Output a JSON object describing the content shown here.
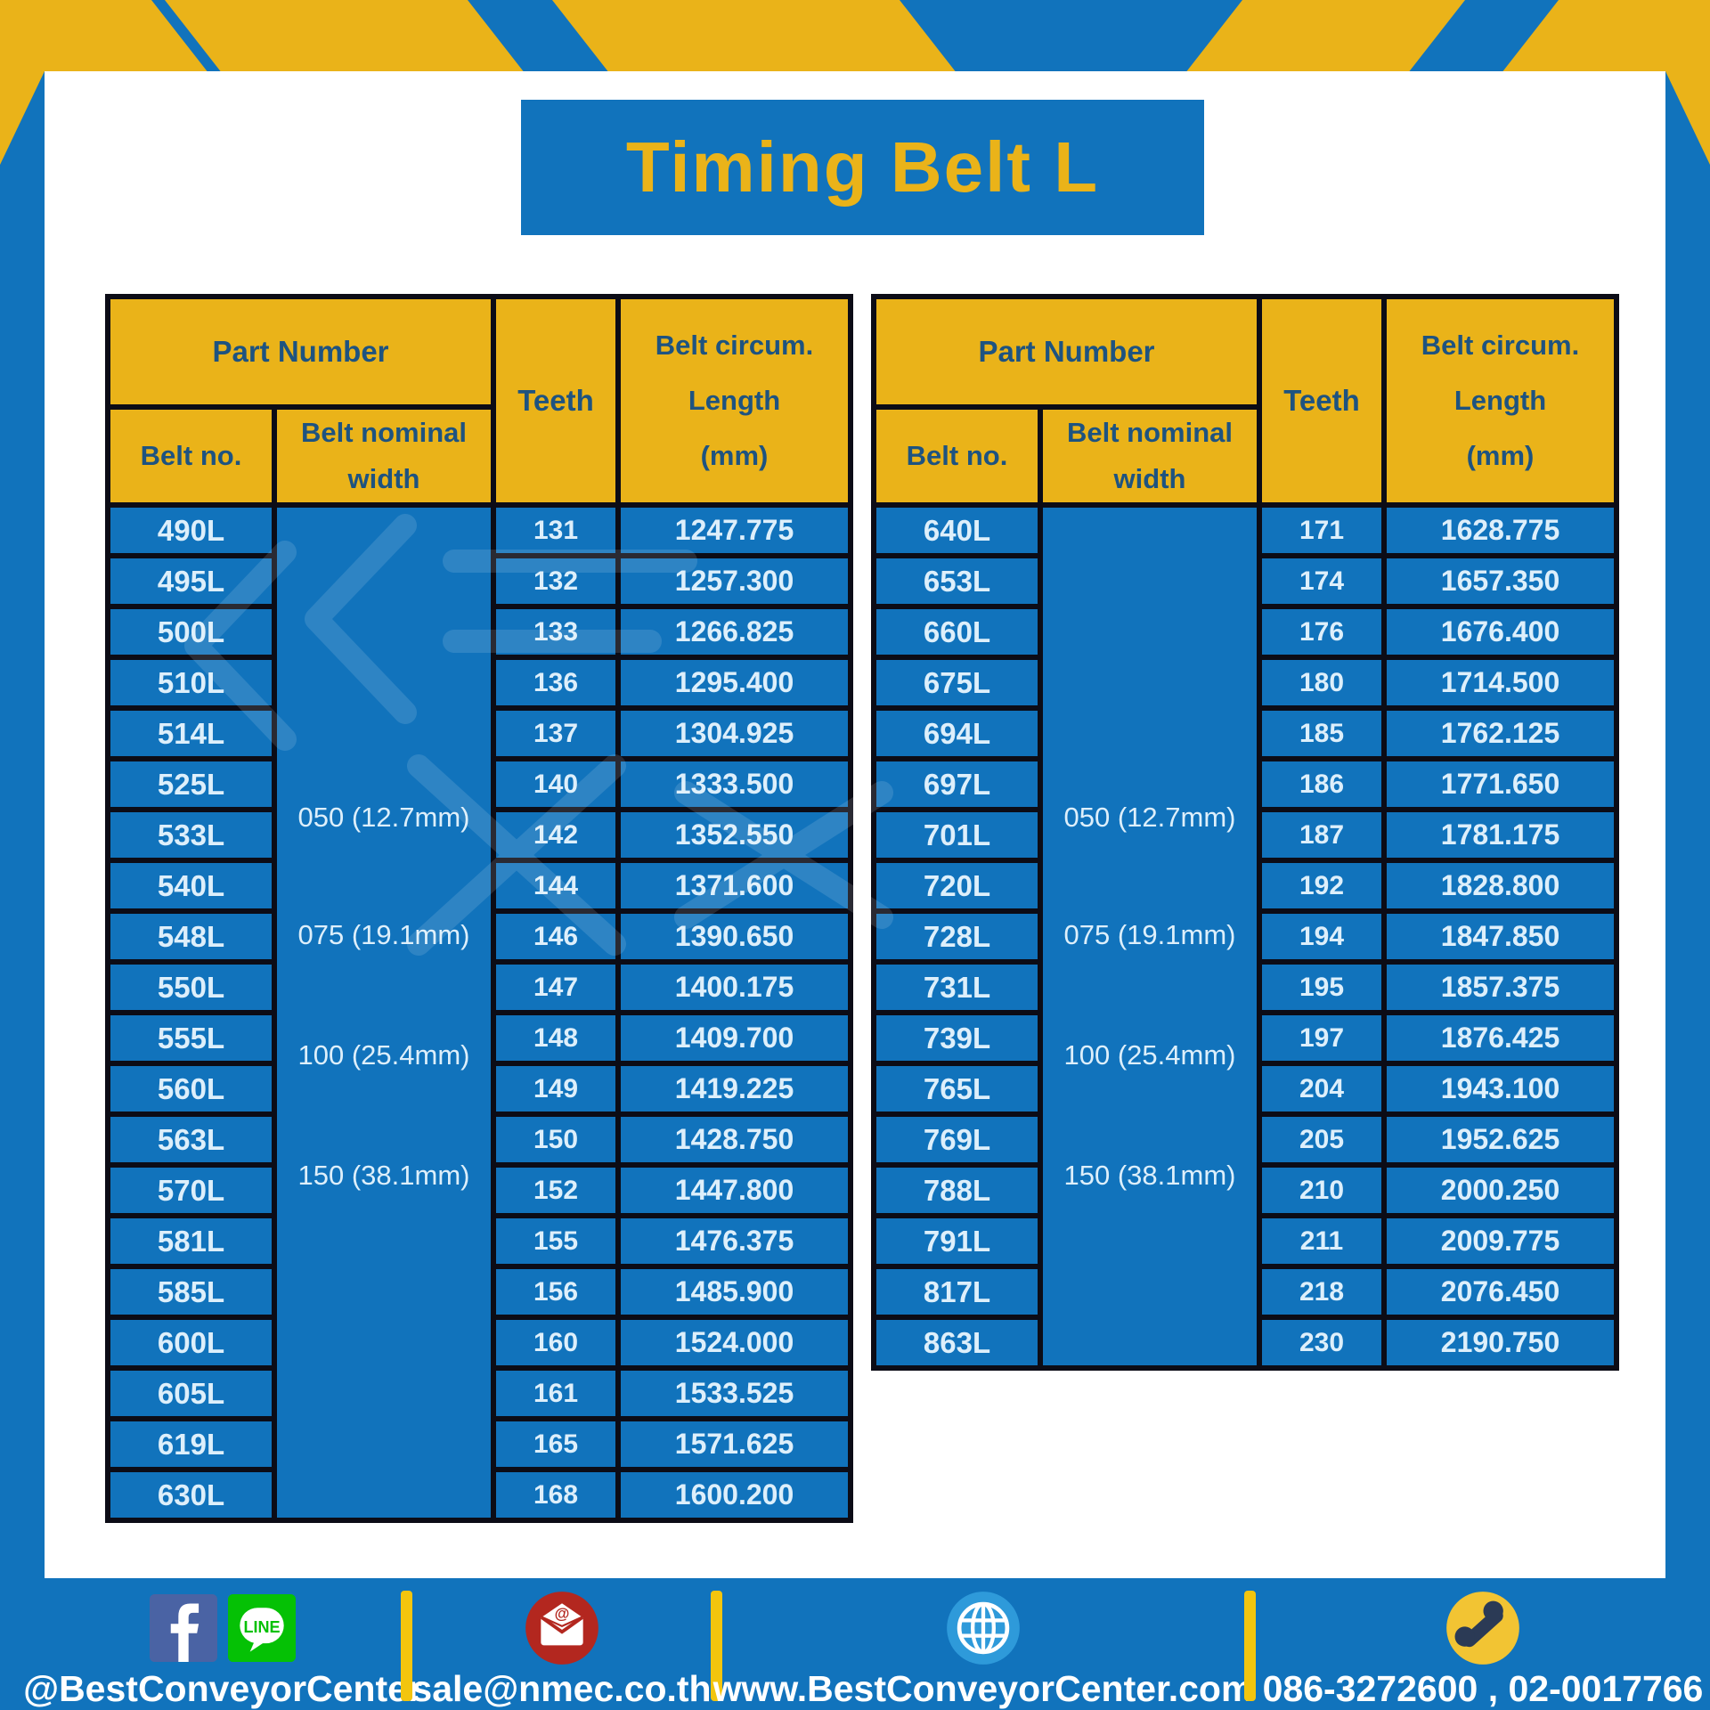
{
  "title": "Timing Belt L",
  "colors": {
    "blue": "#1173bc",
    "gold": "#eab319",
    "navy": "#1e5380",
    "cell-text": "#ddeffb",
    "border-black": "#0c0c16",
    "facebook-blue": "#4a63a4",
    "line-green": "#05c105",
    "email-red": "#b3271f",
    "globe-blue": "#2e9ada",
    "phone-yellow": "#f2c433",
    "white": "#ffffff"
  },
  "tables": [
    {
      "headers": {
        "part_number": "Part Number",
        "belt_no": "Belt no.",
        "belt_width_line1": "Belt nominal",
        "belt_width_line2": "width",
        "teeth": "Teeth",
        "circum_line1": "Belt circum.",
        "circum_line2": "Length",
        "circum_line3": "(mm)"
      },
      "width_labels": [
        "050 (12.7mm)",
        "075 (19.1mm)",
        "100 (25.4mm)",
        "150 (38.1mm)"
      ],
      "rows": [
        {
          "belt_no": "490L",
          "teeth": "131",
          "length": "1247.775"
        },
        {
          "belt_no": "495L",
          "teeth": "132",
          "length": "1257.300"
        },
        {
          "belt_no": "500L",
          "teeth": "133",
          "length": "1266.825"
        },
        {
          "belt_no": "510L",
          "teeth": "136",
          "length": "1295.400"
        },
        {
          "belt_no": "514L",
          "teeth": "137",
          "length": "1304.925"
        },
        {
          "belt_no": "525L",
          "teeth": "140",
          "length": "1333.500"
        },
        {
          "belt_no": "533L",
          "teeth": "142",
          "length": "1352.550"
        },
        {
          "belt_no": "540L",
          "teeth": "144",
          "length": "1371.600"
        },
        {
          "belt_no": "548L",
          "teeth": "146",
          "length": "1390.650"
        },
        {
          "belt_no": "550L",
          "teeth": "147",
          "length": "1400.175"
        },
        {
          "belt_no": "555L",
          "teeth": "148",
          "length": "1409.700"
        },
        {
          "belt_no": "560L",
          "teeth": "149",
          "length": "1419.225"
        },
        {
          "belt_no": "563L",
          "teeth": "150",
          "length": "1428.750"
        },
        {
          "belt_no": "570L",
          "teeth": "152",
          "length": "1447.800"
        },
        {
          "belt_no": "581L",
          "teeth": "155",
          "length": "1476.375"
        },
        {
          "belt_no": "585L",
          "teeth": "156",
          "length": "1485.900"
        },
        {
          "belt_no": "600L",
          "teeth": "160",
          "length": "1524.000"
        },
        {
          "belt_no": "605L",
          "teeth": "161",
          "length": "1533.525"
        },
        {
          "belt_no": "619L",
          "teeth": "165",
          "length": "1571.625"
        },
        {
          "belt_no": "630L",
          "teeth": "168",
          "length": "1600.200"
        }
      ]
    },
    {
      "headers": {
        "part_number": "Part Number",
        "belt_no": "Belt no.",
        "belt_width_line1": "Belt nominal",
        "belt_width_line2": "width",
        "teeth": "Teeth",
        "circum_line1": "Belt circum.",
        "circum_line2": "Length",
        "circum_line3": "(mm)"
      },
      "width_labels": [
        "050 (12.7mm)",
        "075 (19.1mm)",
        "100 (25.4mm)",
        "150 (38.1mm)"
      ],
      "rows": [
        {
          "belt_no": "640L",
          "teeth": "171",
          "length": "1628.775"
        },
        {
          "belt_no": "653L",
          "teeth": "174",
          "length": "1657.350"
        },
        {
          "belt_no": "660L",
          "teeth": "176",
          "length": "1676.400"
        },
        {
          "belt_no": "675L",
          "teeth": "180",
          "length": "1714.500"
        },
        {
          "belt_no": "694L",
          "teeth": "185",
          "length": "1762.125"
        },
        {
          "belt_no": "697L",
          "teeth": "186",
          "length": "1771.650"
        },
        {
          "belt_no": "701L",
          "teeth": "187",
          "length": "1781.175"
        },
        {
          "belt_no": "720L",
          "teeth": "192",
          "length": "1828.800"
        },
        {
          "belt_no": "728L",
          "teeth": "194",
          "length": "1847.850"
        },
        {
          "belt_no": "731L",
          "teeth": "195",
          "length": "1857.375"
        },
        {
          "belt_no": "739L",
          "teeth": "197",
          "length": "1876.425"
        },
        {
          "belt_no": "765L",
          "teeth": "204",
          "length": "1943.100"
        },
        {
          "belt_no": "769L",
          "teeth": "205",
          "length": "1952.625"
        },
        {
          "belt_no": "788L",
          "teeth": "210",
          "length": "2000.250"
        },
        {
          "belt_no": "791L",
          "teeth": "211",
          "length": "2009.775"
        },
        {
          "belt_no": "817L",
          "teeth": "218",
          "length": "2076.450"
        },
        {
          "belt_no": "863L",
          "teeth": "230",
          "length": "2190.750"
        }
      ]
    }
  ],
  "footer": {
    "social": {
      "facebook_glyph": "f",
      "line_label": "LINE",
      "handle": "@BestConveyorCenter"
    },
    "email": "sale@nmec.co.th",
    "website": "www.BestConveyorCenter.com",
    "phones": "086-3272600 , 02-0017766"
  }
}
